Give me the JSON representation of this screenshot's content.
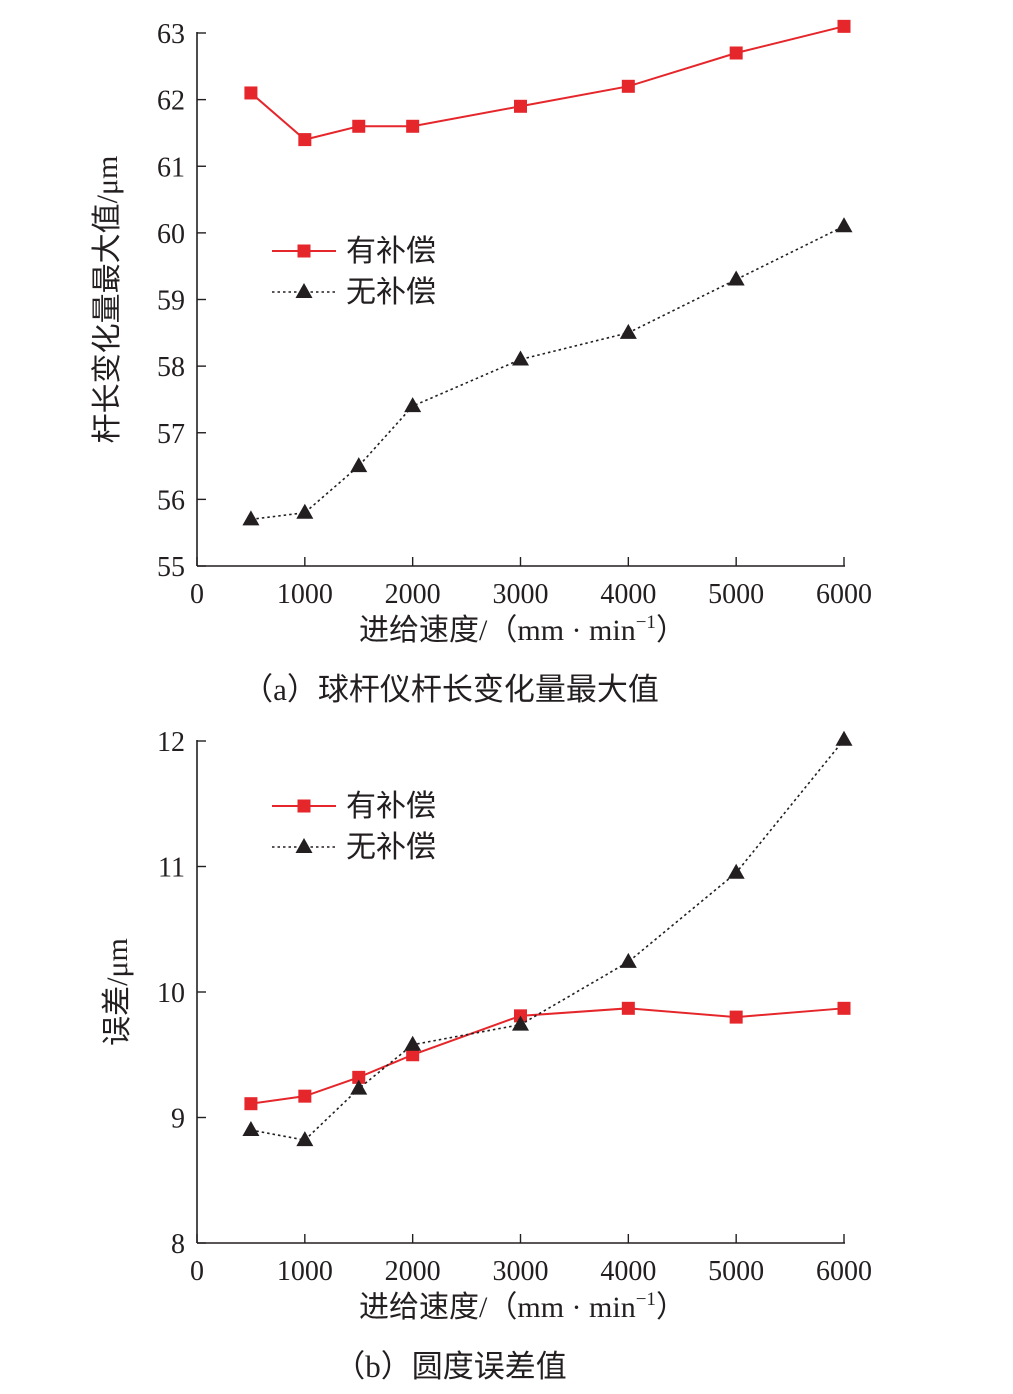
{
  "chart_data": [
    {
      "type": "line",
      "caption": "（a）球杆仪杆长变化量最大值",
      "xlabel": "进给速度/（mm · min",
      "xlabel_sup": "−1",
      "xlabel_end": "）",
      "ylabel": "杆长变化量最大值/μm",
      "x": [
        500,
        1000,
        1500,
        2000,
        3000,
        4000,
        5000,
        6000
      ],
      "xlim": [
        0,
        6000
      ],
      "ylim": [
        55,
        63
      ],
      "xticks": [
        0,
        1000,
        2000,
        3000,
        4000,
        5000,
        6000
      ],
      "yticks": [
        55,
        56,
        57,
        58,
        59,
        60,
        61,
        62,
        63
      ],
      "grid": false,
      "legend_position": "center-left",
      "series": [
        {
          "name": "有补偿",
          "color": "#e5262b",
          "marker": "square",
          "line": "solid",
          "values": [
            62.1,
            61.4,
            61.6,
            61.6,
            61.9,
            62.2,
            62.7,
            63.1
          ]
        },
        {
          "name": "无补偿",
          "color": "#231f20",
          "marker": "triangle",
          "line": "dotted",
          "values": [
            55.7,
            55.8,
            56.5,
            57.4,
            58.1,
            58.5,
            59.3,
            60.1
          ]
        }
      ]
    },
    {
      "type": "line",
      "caption": "（b）圆度误差值",
      "xlabel": "进给速度/（mm · min",
      "xlabel_sup": "−1",
      "xlabel_end": "）",
      "ylabel": "误差/μm",
      "x": [
        500,
        1000,
        1500,
        2000,
        3000,
        4000,
        5000,
        6000
      ],
      "xlim": [
        0,
        6000
      ],
      "ylim": [
        8,
        12
      ],
      "xticks": [
        0,
        1000,
        2000,
        3000,
        4000,
        5000,
        6000
      ],
      "yticks": [
        8,
        9,
        10,
        11,
        12
      ],
      "grid": false,
      "legend_position": "top-left",
      "series": [
        {
          "name": "有补偿",
          "color": "#e5262b",
          "marker": "square",
          "line": "solid",
          "values": [
            9.11,
            9.17,
            9.32,
            9.5,
            9.81,
            9.87,
            9.8,
            9.87
          ]
        },
        {
          "name": "无补偿",
          "color": "#231f20",
          "marker": "triangle",
          "line": "dotted",
          "values": [
            8.9,
            8.82,
            9.23,
            9.58,
            9.74,
            10.24,
            10.95,
            12.01
          ]
        }
      ]
    }
  ]
}
